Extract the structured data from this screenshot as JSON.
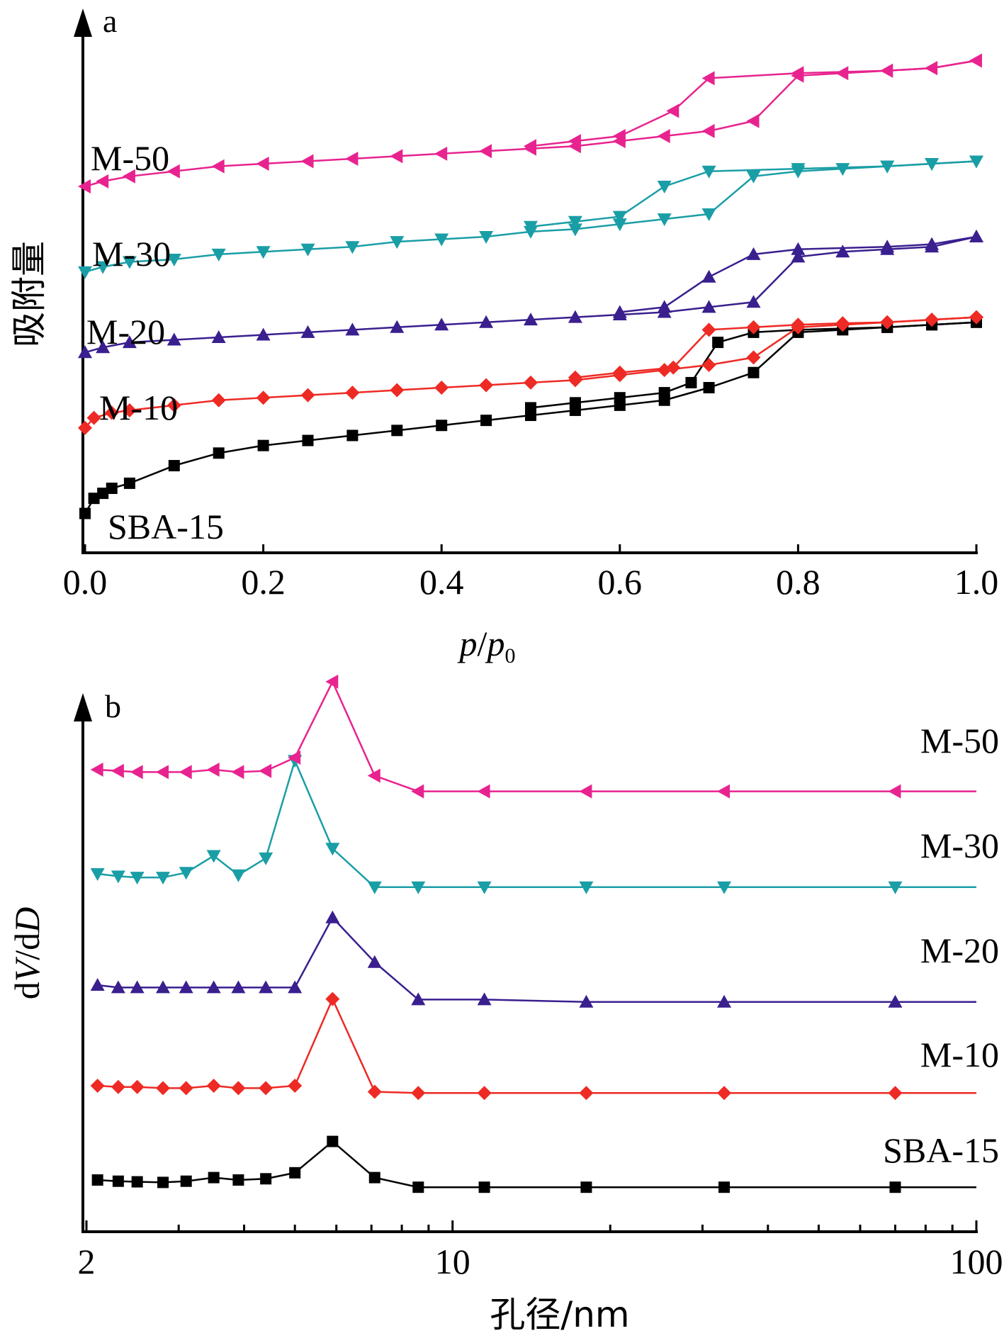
{
  "chart_data": [
    {
      "panel": "a",
      "type": "line",
      "xlabel": "p/p0",
      "ylabel": "吸附量",
      "xlim": [
        0,
        1.0
      ],
      "xticks": [
        "0.0",
        "0.2",
        "0.4",
        "0.6",
        "0.8",
        "1.0"
      ],
      "yticks": "none",
      "note_y": "arbitrary units, curves vertically offset",
      "series": [
        {
          "name": "SBA-15",
          "color": "#000000",
          "marker": "square",
          "adsorption": [
            [
              0.0,
              0.05
            ],
            [
              0.01,
              0.08
            ],
            [
              0.02,
              0.09
            ],
            [
              0.03,
              0.1
            ],
            [
              0.05,
              0.11
            ],
            [
              0.1,
              0.145
            ],
            [
              0.15,
              0.17
            ],
            [
              0.2,
              0.185
            ],
            [
              0.25,
              0.195
            ],
            [
              0.3,
              0.205
            ],
            [
              0.35,
              0.215
            ],
            [
              0.4,
              0.225
            ],
            [
              0.45,
              0.235
            ],
            [
              0.5,
              0.245
            ],
            [
              0.55,
              0.255
            ],
            [
              0.6,
              0.265
            ],
            [
              0.65,
              0.275
            ],
            [
              0.7,
              0.3
            ],
            [
              0.75,
              0.33
            ],
            [
              0.8,
              0.41
            ],
            [
              0.85,
              0.415
            ],
            [
              0.9,
              0.42
            ],
            [
              0.95,
              0.425
            ],
            [
              1.0,
              0.43
            ]
          ],
          "desorption": [
            [
              1.0,
              0.43
            ],
            [
              0.95,
              0.425
            ],
            [
              0.9,
              0.42
            ],
            [
              0.8,
              0.415
            ],
            [
              0.75,
              0.41
            ],
            [
              0.71,
              0.39
            ],
            [
              0.68,
              0.31
            ],
            [
              0.65,
              0.29
            ],
            [
              0.6,
              0.28
            ],
            [
              0.55,
              0.27
            ],
            [
              0.5,
              0.26
            ]
          ]
        },
        {
          "name": "M-10",
          "color": "#ee2a24",
          "marker": "diamond",
          "adsorption": [
            [
              0.0,
              0.22
            ],
            [
              0.01,
              0.24
            ],
            [
              0.03,
              0.25
            ],
            [
              0.05,
              0.255
            ],
            [
              0.1,
              0.265
            ],
            [
              0.15,
              0.275
            ],
            [
              0.2,
              0.28
            ],
            [
              0.25,
              0.285
            ],
            [
              0.3,
              0.29
            ],
            [
              0.35,
              0.295
            ],
            [
              0.4,
              0.3
            ],
            [
              0.45,
              0.305
            ],
            [
              0.5,
              0.31
            ],
            [
              0.55,
              0.315
            ],
            [
              0.6,
              0.325
            ],
            [
              0.65,
              0.335
            ],
            [
              0.7,
              0.345
            ],
            [
              0.75,
              0.36
            ],
            [
              0.8,
              0.42
            ],
            [
              0.85,
              0.425
            ],
            [
              0.9,
              0.43
            ],
            [
              0.95,
              0.435
            ],
            [
              1.0,
              0.44
            ]
          ],
          "desorption": [
            [
              1.0,
              0.44
            ],
            [
              0.95,
              0.435
            ],
            [
              0.9,
              0.43
            ],
            [
              0.85,
              0.428
            ],
            [
              0.8,
              0.425
            ],
            [
              0.75,
              0.42
            ],
            [
              0.7,
              0.415
            ],
            [
              0.66,
              0.34
            ],
            [
              0.6,
              0.33
            ],
            [
              0.55,
              0.32
            ]
          ]
        },
        {
          "name": "M-20",
          "color": "#3a1f8f",
          "marker": "triangle-up",
          "adsorption": [
            [
              0.0,
              0.37
            ],
            [
              0.02,
              0.38
            ],
            [
              0.05,
              0.39
            ],
            [
              0.1,
              0.395
            ],
            [
              0.15,
              0.4
            ],
            [
              0.2,
              0.405
            ],
            [
              0.25,
              0.41
            ],
            [
              0.3,
              0.415
            ],
            [
              0.35,
              0.42
            ],
            [
              0.4,
              0.425
            ],
            [
              0.45,
              0.43
            ],
            [
              0.5,
              0.435
            ],
            [
              0.55,
              0.44
            ],
            [
              0.6,
              0.445
            ],
            [
              0.65,
              0.45
            ],
            [
              0.7,
              0.46
            ],
            [
              0.75,
              0.47
            ],
            [
              0.8,
              0.56
            ],
            [
              0.85,
              0.57
            ],
            [
              0.9,
              0.575
            ],
            [
              0.95,
              0.58
            ],
            [
              1.0,
              0.6
            ]
          ],
          "desorption": [
            [
              1.0,
              0.6
            ],
            [
              0.95,
              0.585
            ],
            [
              0.9,
              0.58
            ],
            [
              0.8,
              0.575
            ],
            [
              0.75,
              0.565
            ],
            [
              0.7,
              0.52
            ],
            [
              0.65,
              0.46
            ],
            [
              0.6,
              0.45
            ]
          ]
        },
        {
          "name": "M-30",
          "color": "#1a9ea6",
          "marker": "triangle-down",
          "adsorption": [
            [
              0.0,
              0.53
            ],
            [
              0.02,
              0.54
            ],
            [
              0.05,
              0.55
            ],
            [
              0.1,
              0.555
            ],
            [
              0.15,
              0.565
            ],
            [
              0.2,
              0.57
            ],
            [
              0.25,
              0.575
            ],
            [
              0.3,
              0.58
            ],
            [
              0.35,
              0.59
            ],
            [
              0.4,
              0.595
            ],
            [
              0.45,
              0.6
            ],
            [
              0.5,
              0.61
            ],
            [
              0.55,
              0.615
            ],
            [
              0.6,
              0.625
            ],
            [
              0.65,
              0.635
            ],
            [
              0.7,
              0.645
            ],
            [
              0.75,
              0.72
            ],
            [
              0.8,
              0.73
            ],
            [
              0.85,
              0.735
            ],
            [
              0.9,
              0.74
            ],
            [
              0.95,
              0.745
            ],
            [
              1.0,
              0.75
            ]
          ],
          "desorption": [
            [
              1.0,
              0.75
            ],
            [
              0.95,
              0.745
            ],
            [
              0.9,
              0.74
            ],
            [
              0.8,
              0.735
            ],
            [
              0.7,
              0.73
            ],
            [
              0.65,
              0.7
            ],
            [
              0.6,
              0.64
            ],
            [
              0.55,
              0.63
            ],
            [
              0.5,
              0.62
            ]
          ]
        },
        {
          "name": "M-50",
          "color": "#e8238f",
          "marker": "triangle-left",
          "adsorption": [
            [
              0.0,
              0.7
            ],
            [
              0.02,
              0.71
            ],
            [
              0.05,
              0.72
            ],
            [
              0.1,
              0.73
            ],
            [
              0.15,
              0.74
            ],
            [
              0.2,
              0.745
            ],
            [
              0.25,
              0.75
            ],
            [
              0.3,
              0.755
            ],
            [
              0.35,
              0.76
            ],
            [
              0.4,
              0.765
            ],
            [
              0.45,
              0.77
            ],
            [
              0.5,
              0.775
            ],
            [
              0.55,
              0.78
            ],
            [
              0.6,
              0.79
            ],
            [
              0.65,
              0.8
            ],
            [
              0.7,
              0.81
            ],
            [
              0.75,
              0.83
            ],
            [
              0.8,
              0.92
            ],
            [
              0.85,
              0.925
            ],
            [
              0.9,
              0.93
            ],
            [
              0.95,
              0.935
            ],
            [
              1.0,
              0.95
            ]
          ],
          "desorption": [
            [
              1.0,
              0.95
            ],
            [
              0.95,
              0.935
            ],
            [
              0.9,
              0.93
            ],
            [
              0.8,
              0.925
            ],
            [
              0.7,
              0.915
            ],
            [
              0.66,
              0.85
            ],
            [
              0.6,
              0.8
            ],
            [
              0.55,
              0.79
            ],
            [
              0.5,
              0.78
            ]
          ]
        }
      ]
    },
    {
      "panel": "b",
      "type": "line",
      "xlabel": "孔径/nm",
      "ylabel": "dV/dD",
      "xscale": "log",
      "xlim": [
        2,
        100
      ],
      "xticks": [
        "2",
        "10",
        "100"
      ],
      "yticks": "none",
      "note_y": "arbitrary units, curves vertically offset",
      "series": [
        {
          "name": "SBA-15",
          "color": "#000000",
          "marker": "square",
          "points": [
            [
              2.1,
              0.0
            ],
            [
              2.3,
              -0.01
            ],
            [
              2.5,
              -0.015
            ],
            [
              2.8,
              -0.02
            ],
            [
              3.1,
              -0.01
            ],
            [
              3.5,
              0.02
            ],
            [
              3.9,
              0.0
            ],
            [
              4.4,
              0.01
            ],
            [
              5.0,
              0.06
            ],
            [
              5.9,
              0.32
            ],
            [
              7.1,
              0.02
            ],
            [
              8.6,
              -0.06
            ],
            [
              11.5,
              -0.06
            ],
            [
              18,
              -0.06
            ],
            [
              33,
              -0.06
            ],
            [
              70,
              -0.06
            ],
            [
              100,
              -0.06
            ]
          ]
        },
        {
          "name": "M-10",
          "color": "#ee2a24",
          "marker": "diamond",
          "points": [
            [
              2.1,
              0.0
            ],
            [
              2.3,
              -0.01
            ],
            [
              2.5,
              -0.01
            ],
            [
              2.8,
              -0.02
            ],
            [
              3.1,
              -0.02
            ],
            [
              3.5,
              0.0
            ],
            [
              3.9,
              -0.02
            ],
            [
              4.4,
              -0.02
            ],
            [
              5.0,
              0.0
            ],
            [
              5.9,
              0.72
            ],
            [
              7.1,
              -0.05
            ],
            [
              8.6,
              -0.06
            ],
            [
              11.5,
              -0.06
            ],
            [
              18,
              -0.06
            ],
            [
              33,
              -0.06
            ],
            [
              70,
              -0.06
            ],
            [
              100,
              -0.06
            ]
          ]
        },
        {
          "name": "M-20",
          "color": "#3a1f8f",
          "marker": "triangle-up",
          "points": [
            [
              2.1,
              0.0
            ],
            [
              2.3,
              -0.02
            ],
            [
              2.5,
              -0.02
            ],
            [
              2.8,
              -0.02
            ],
            [
              3.1,
              -0.02
            ],
            [
              3.5,
              -0.02
            ],
            [
              3.9,
              -0.02
            ],
            [
              4.4,
              -0.02
            ],
            [
              5.0,
              -0.02
            ],
            [
              5.9,
              0.56
            ],
            [
              7.1,
              0.19
            ],
            [
              8.6,
              -0.12
            ],
            [
              11.5,
              -0.12
            ],
            [
              18,
              -0.14
            ],
            [
              33,
              -0.14
            ],
            [
              70,
              -0.14
            ],
            [
              100,
              -0.14
            ]
          ]
        },
        {
          "name": "M-30",
          "color": "#1a9ea6",
          "marker": "triangle-down",
          "points": [
            [
              2.1,
              0.0
            ],
            [
              2.3,
              -0.02
            ],
            [
              2.5,
              -0.03
            ],
            [
              2.8,
              -0.03
            ],
            [
              3.1,
              0.01
            ],
            [
              3.5,
              0.15
            ],
            [
              3.9,
              -0.01
            ],
            [
              4.4,
              0.13
            ],
            [
              5.0,
              0.94
            ],
            [
              5.9,
              0.21
            ],
            [
              7.1,
              -0.11
            ],
            [
              8.6,
              -0.11
            ],
            [
              11.5,
              -0.11
            ],
            [
              18,
              -0.11
            ],
            [
              33,
              -0.11
            ],
            [
              70,
              -0.11
            ],
            [
              100,
              -0.11
            ]
          ]
        },
        {
          "name": "M-50",
          "color": "#e8238f",
          "marker": "triangle-left",
          "points": [
            [
              2.1,
              0.0
            ],
            [
              2.3,
              -0.01
            ],
            [
              2.5,
              -0.02
            ],
            [
              2.8,
              -0.02
            ],
            [
              3.1,
              -0.02
            ],
            [
              3.5,
              0.0
            ],
            [
              3.9,
              -0.02
            ],
            [
              4.4,
              -0.01
            ],
            [
              5.0,
              0.1
            ],
            [
              5.9,
              0.73
            ],
            [
              7.1,
              -0.05
            ],
            [
              8.6,
              -0.18
            ],
            [
              11.5,
              -0.18
            ],
            [
              18,
              -0.18
            ],
            [
              33,
              -0.18
            ],
            [
              70,
              -0.18
            ],
            [
              100,
              -0.18
            ]
          ]
        }
      ]
    }
  ]
}
